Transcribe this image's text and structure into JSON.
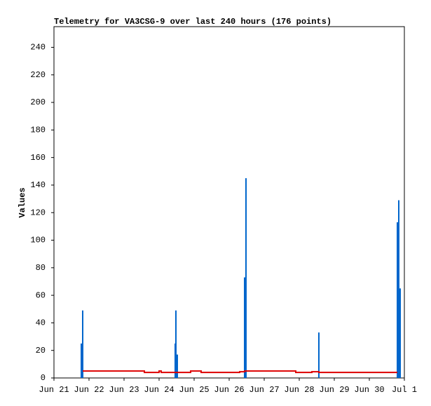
{
  "chart_data": {
    "type": "bar",
    "title": "Telemetry for VA3CSG-9 over last 240 hours (176 points)",
    "y_label": "Values",
    "xlim": [
      0,
      10
    ],
    "ylim": [
      0,
      255
    ],
    "xticks": [
      {
        "value": 0,
        "label": "Jun 21"
      },
      {
        "value": 1,
        "label": "Jun 22"
      },
      {
        "value": 2,
        "label": "Jun 23"
      },
      {
        "value": 3,
        "label": "Jun 24"
      },
      {
        "value": 4,
        "label": "Jun 25"
      },
      {
        "value": 5,
        "label": "Jun 26"
      },
      {
        "value": 6,
        "label": "Jun 27"
      },
      {
        "value": 7,
        "label": "Jun 28"
      },
      {
        "value": 8,
        "label": "Jun 29"
      },
      {
        "value": 9,
        "label": "Jun 30"
      },
      {
        "value": 10,
        "label": "Jul 1"
      }
    ],
    "yticks": [
      0,
      20,
      40,
      60,
      80,
      100,
      120,
      140,
      160,
      180,
      200,
      220,
      240
    ],
    "series": [
      {
        "type": "bar",
        "color": "#0066cc",
        "x": [
          0.78,
          0.82,
          3.46,
          3.48,
          3.52,
          5.44,
          5.48,
          7.56,
          9.8,
          9.84,
          9.88
        ],
        "values": [
          25,
          49,
          25,
          49,
          17,
          73,
          145,
          33,
          113,
          129,
          65
        ]
      },
      {
        "type": "line",
        "color": "#dd0000",
        "x": [
          0.82,
          2.58,
          2.58,
          3.0,
          3.0,
          3.06,
          3.06,
          3.9,
          3.9,
          4.2,
          4.2,
          5.3,
          5.3,
          5.44,
          5.44,
          6.9,
          6.9,
          7.36,
          7.36,
          7.56,
          7.56,
          9.8
        ],
        "values": [
          5,
          5,
          4,
          4,
          5,
          5,
          4,
          4,
          5,
          5,
          4,
          4,
          4.5,
          4.5,
          5,
          5,
          4,
          4,
          4.5,
          4.5,
          4,
          4
        ]
      }
    ]
  }
}
